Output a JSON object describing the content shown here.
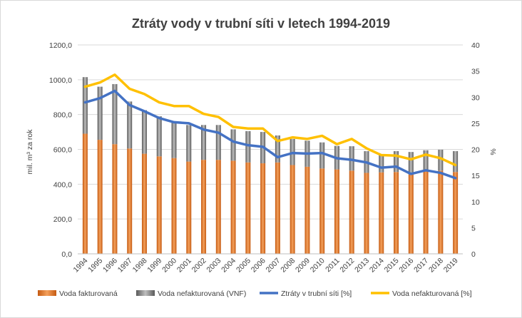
{
  "chart_data": {
    "type": "bar",
    "title": "Ztráty vody v trubní síti v letech 1994-2019",
    "xlabel": "",
    "ylabel": "mil. m³ za rok",
    "y2label": "%",
    "ylim": [
      0,
      1200
    ],
    "y2lim": [
      0,
      40
    ],
    "yticks": [
      "0,0",
      "200,0",
      "400,0",
      "600,0",
      "800,0",
      "1000,0",
      "1200,0"
    ],
    "y2ticks": [
      "0",
      "5",
      "10",
      "15",
      "20",
      "25",
      "30",
      "35",
      "40"
    ],
    "grid": true,
    "legend_position": "bottom",
    "categories": [
      "1994",
      "1995",
      "1996",
      "1997",
      "1998",
      "1999",
      "2000",
      "2001",
      "2002",
      "2003",
      "2004",
      "2005",
      "2006",
      "2007",
      "2008",
      "2009",
      "2010",
      "2011",
      "2012",
      "2013",
      "2014",
      "2015",
      "2016",
      "2017",
      "2018",
      "2019"
    ],
    "series": [
      {
        "name": "Voda fakturovaná",
        "kind": "stacked-bar",
        "axis": "left",
        "color": "#ed7d31",
        "values": [
          690,
          655,
          630,
          605,
          575,
          560,
          550,
          530,
          540,
          540,
          535,
          525,
          520,
          525,
          510,
          500,
          490,
          485,
          478,
          465,
          468,
          470,
          455,
          480,
          478,
          470
        ]
      },
      {
        "name": "Voda nefakturovaná (VNF)",
        "kind": "stacked-bar",
        "axis": "left",
        "color": "#7f7f7f",
        "values": [
          325,
          305,
          345,
          270,
          250,
          230,
          210,
          210,
          200,
          200,
          180,
          180,
          180,
          155,
          150,
          150,
          150,
          135,
          140,
          125,
          100,
          120,
          130,
          115,
          120,
          120
        ]
      },
      {
        "name": "Ztráty v trubní síti [%]",
        "kind": "line",
        "axis": "right",
        "color": "#4472c4",
        "values": [
          29.0,
          29.8,
          31.2,
          28.5,
          27.3,
          26.0,
          25.2,
          25.0,
          23.8,
          23.2,
          21.5,
          20.8,
          20.5,
          18.5,
          19.3,
          19.2,
          19.3,
          18.3,
          18.0,
          17.5,
          16.5,
          16.7,
          15.3,
          16.0,
          15.5,
          14.5
        ]
      },
      {
        "name": "Voda nefakturovaná [%]",
        "kind": "line",
        "axis": "right",
        "color": "#ffc000",
        "values": [
          32.0,
          32.8,
          34.3,
          31.6,
          30.6,
          29.0,
          28.3,
          28.3,
          26.8,
          26.2,
          24.3,
          24.0,
          24.0,
          21.6,
          22.3,
          22.0,
          22.6,
          21.0,
          22.0,
          20.2,
          18.9,
          18.8,
          18.1,
          19.0,
          18.3,
          17.0
        ]
      }
    ]
  }
}
